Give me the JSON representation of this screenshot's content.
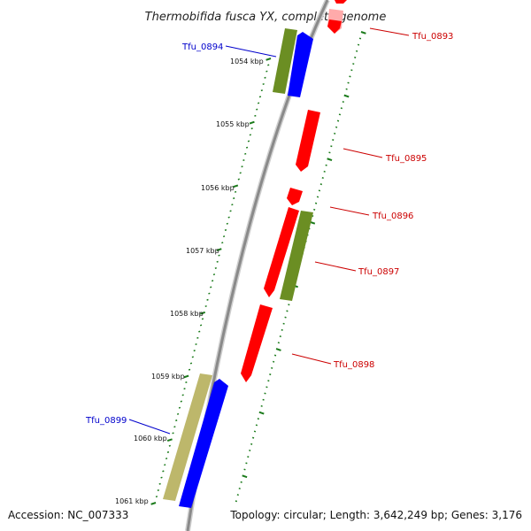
{
  "title": "Thermobifida fusca YX, complete genome",
  "footer": {
    "accession": "Accession: NC_007333",
    "summary": "Topology: circular; Length: 3,642,249 bp; Genes: 3,176"
  },
  "scale_labels": [
    "1054 kbp",
    "1055 kbp",
    "1056 kbp",
    "1057 kbp",
    "1058 kbp",
    "1059 kbp",
    "1060 kbp",
    "1061 kbp"
  ],
  "gene_labels": {
    "tfu_0893": "Tfu_0893",
    "tfu_0894": "Tfu_0894",
    "tfu_0895": "Tfu_0895",
    "tfu_0896": "Tfu_0896",
    "tfu_0897": "Tfu_0897",
    "tfu_0898": "Tfu_0898",
    "tfu_0899": "Tfu_0899"
  },
  "colors": {
    "backbone": "#8a8a8a",
    "forward_gene": "#0000ff",
    "reverse_gene": "#ff0000",
    "reverse_gene_faded": "#ffaaaa",
    "cog_olive": "#6b8e23",
    "cog_khaki": "#bdb76b",
    "ticks": "#1a7a1a",
    "forward_label": "#0000cc",
    "reverse_label": "#cc0000"
  }
}
